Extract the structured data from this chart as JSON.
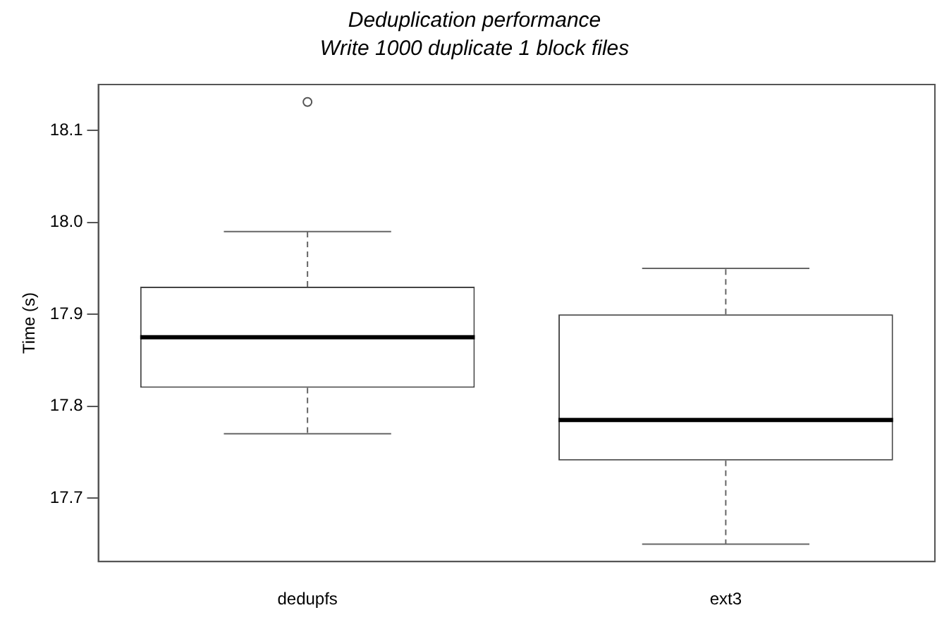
{
  "chart_data": {
    "type": "box",
    "title": "Deduplication performance",
    "subtitle": "Write 1000 duplicate 1 block files",
    "ylabel": "Time (s)",
    "categories": [
      "dedupfs",
      "ext3"
    ],
    "boxes": [
      {
        "low": 17.77,
        "q1": 17.82,
        "median": 17.875,
        "q3": 17.93,
        "high": 17.99,
        "outliers": [
          18.131
        ]
      },
      {
        "low": 17.65,
        "q1": 17.741,
        "median": 17.785,
        "q3": 17.9,
        "high": 17.95
      }
    ],
    "ylim": [
      17.631,
      18.15
    ],
    "yticks": [
      17.7,
      17.8,
      17.9,
      {
        "value": 18,
        "label": "18.0"
      },
      18.1
    ],
    "grid": false,
    "legend": false
  }
}
